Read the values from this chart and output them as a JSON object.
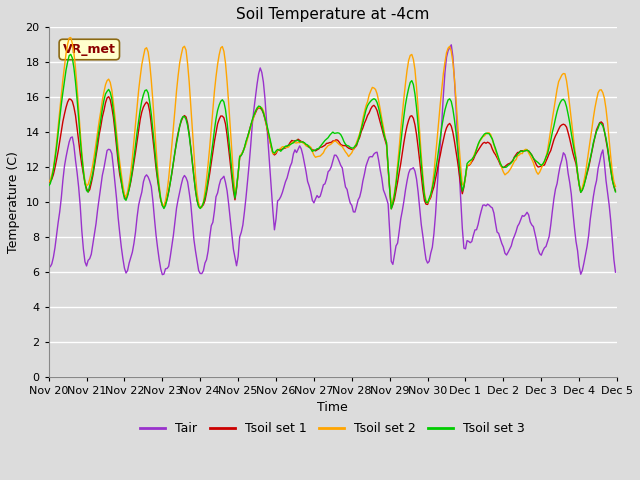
{
  "title": "Soil Temperature at -4cm",
  "xlabel": "Time",
  "ylabel": "Temperature (C)",
  "ylim": [
    0,
    20
  ],
  "yticks": [
    0,
    2,
    4,
    6,
    8,
    10,
    12,
    14,
    16,
    18,
    20
  ],
  "xtick_labels": [
    "Nov 20",
    "Nov 21",
    "Nov 22",
    "Nov 23",
    "Nov 24",
    "Nov 25",
    "Nov 26",
    "Nov 27",
    "Nov 28",
    "Nov 29",
    "Nov 30",
    "Dec 1",
    "Dec 2",
    "Dec 3",
    "Dec 4",
    "Dec 5"
  ],
  "annotation_text": "VR_met",
  "colors": {
    "Tair": "#9932CC",
    "Tsoil1": "#CC0000",
    "Tsoil2": "#FFA500",
    "Tsoil3": "#00CC00"
  },
  "legend_labels": [
    "Tair",
    "Tsoil set 1",
    "Tsoil set 2",
    "Tsoil set 3"
  ],
  "background_color": "#DCDCDC",
  "plot_bg_color": "#DCDCDC",
  "grid_color": "#FFFFFF",
  "title_fontsize": 11,
  "axis_fontsize": 9,
  "legend_fontsize": 9,
  "tick_fontsize": 8
}
